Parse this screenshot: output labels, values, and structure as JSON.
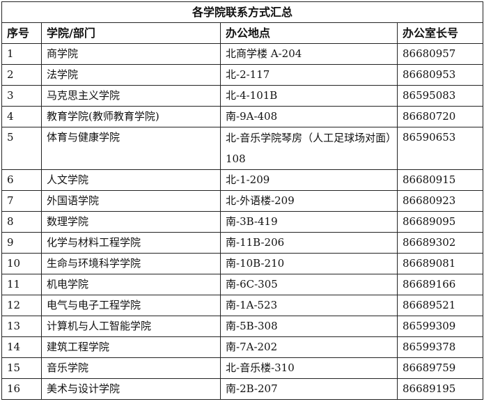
{
  "title": "各学院联系方式汇总",
  "headers": [
    "序号",
    "学院/部门",
    "办公地点",
    "办公室长号"
  ],
  "rows": [
    [
      "1",
      "商学院",
      "北商学楼 A-204",
      "86680957"
    ],
    [
      "2",
      "法学院",
      "北-2-117",
      "86680953"
    ],
    [
      "3",
      "马克思主义学院",
      "北-4-101B",
      "86595083"
    ],
    [
      "4",
      "教育学院(教师教育学院)",
      "南-9A-408",
      "86680720"
    ],
    [
      "5",
      "体育与健康学院",
      "北-音乐学院琴房（人工足球场对面）108",
      "86590653"
    ],
    [
      "6",
      "人文学院",
      "北-1-209",
      "86680915"
    ],
    [
      "7",
      "外国语学院",
      "北-外语楼-209",
      "86680923"
    ],
    [
      "8",
      "数理学院",
      "南-3B-419",
      "86689095"
    ],
    [
      "9",
      "化学与材料工程学院",
      "南-11B-206",
      "86689302"
    ],
    [
      "10",
      "生命与环境科学学院",
      "南-10B-210",
      "86689081"
    ],
    [
      "11",
      "机电学院",
      "南-6C-305",
      "86689166"
    ],
    [
      "12",
      "电气与电子工程学院",
      "南-1A-523",
      "86689521"
    ],
    [
      "13",
      "计算机与人工智能学院",
      "南-5B-308",
      "86599309"
    ],
    [
      "14",
      "建筑工程学院",
      "南-7A-202",
      "86599378"
    ],
    [
      "15",
      "音乐学院",
      "北-音乐楼-310",
      "86689759"
    ],
    [
      "16",
      "美术与设计学院",
      "南-2B-207",
      "86689195"
    ]
  ]
}
